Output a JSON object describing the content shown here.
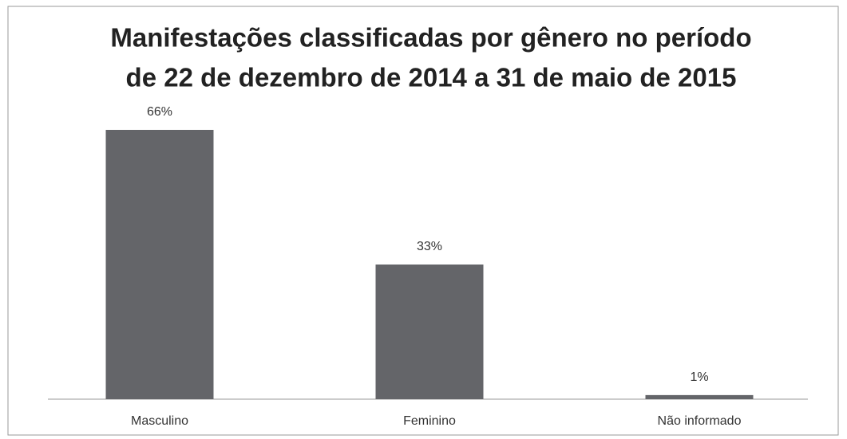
{
  "chart_data": {
    "type": "bar",
    "title": [
      "Manifestações classificadas por gênero no período",
      "de 22 de dezembro de 2014 a 31 de maio de 2015"
    ],
    "categories": [
      "Masculino",
      "Feminino",
      "Não informado"
    ],
    "values": [
      66,
      33,
      1
    ],
    "value_labels": [
      "66%",
      "33%",
      "1%"
    ],
    "color": "#646569"
  }
}
